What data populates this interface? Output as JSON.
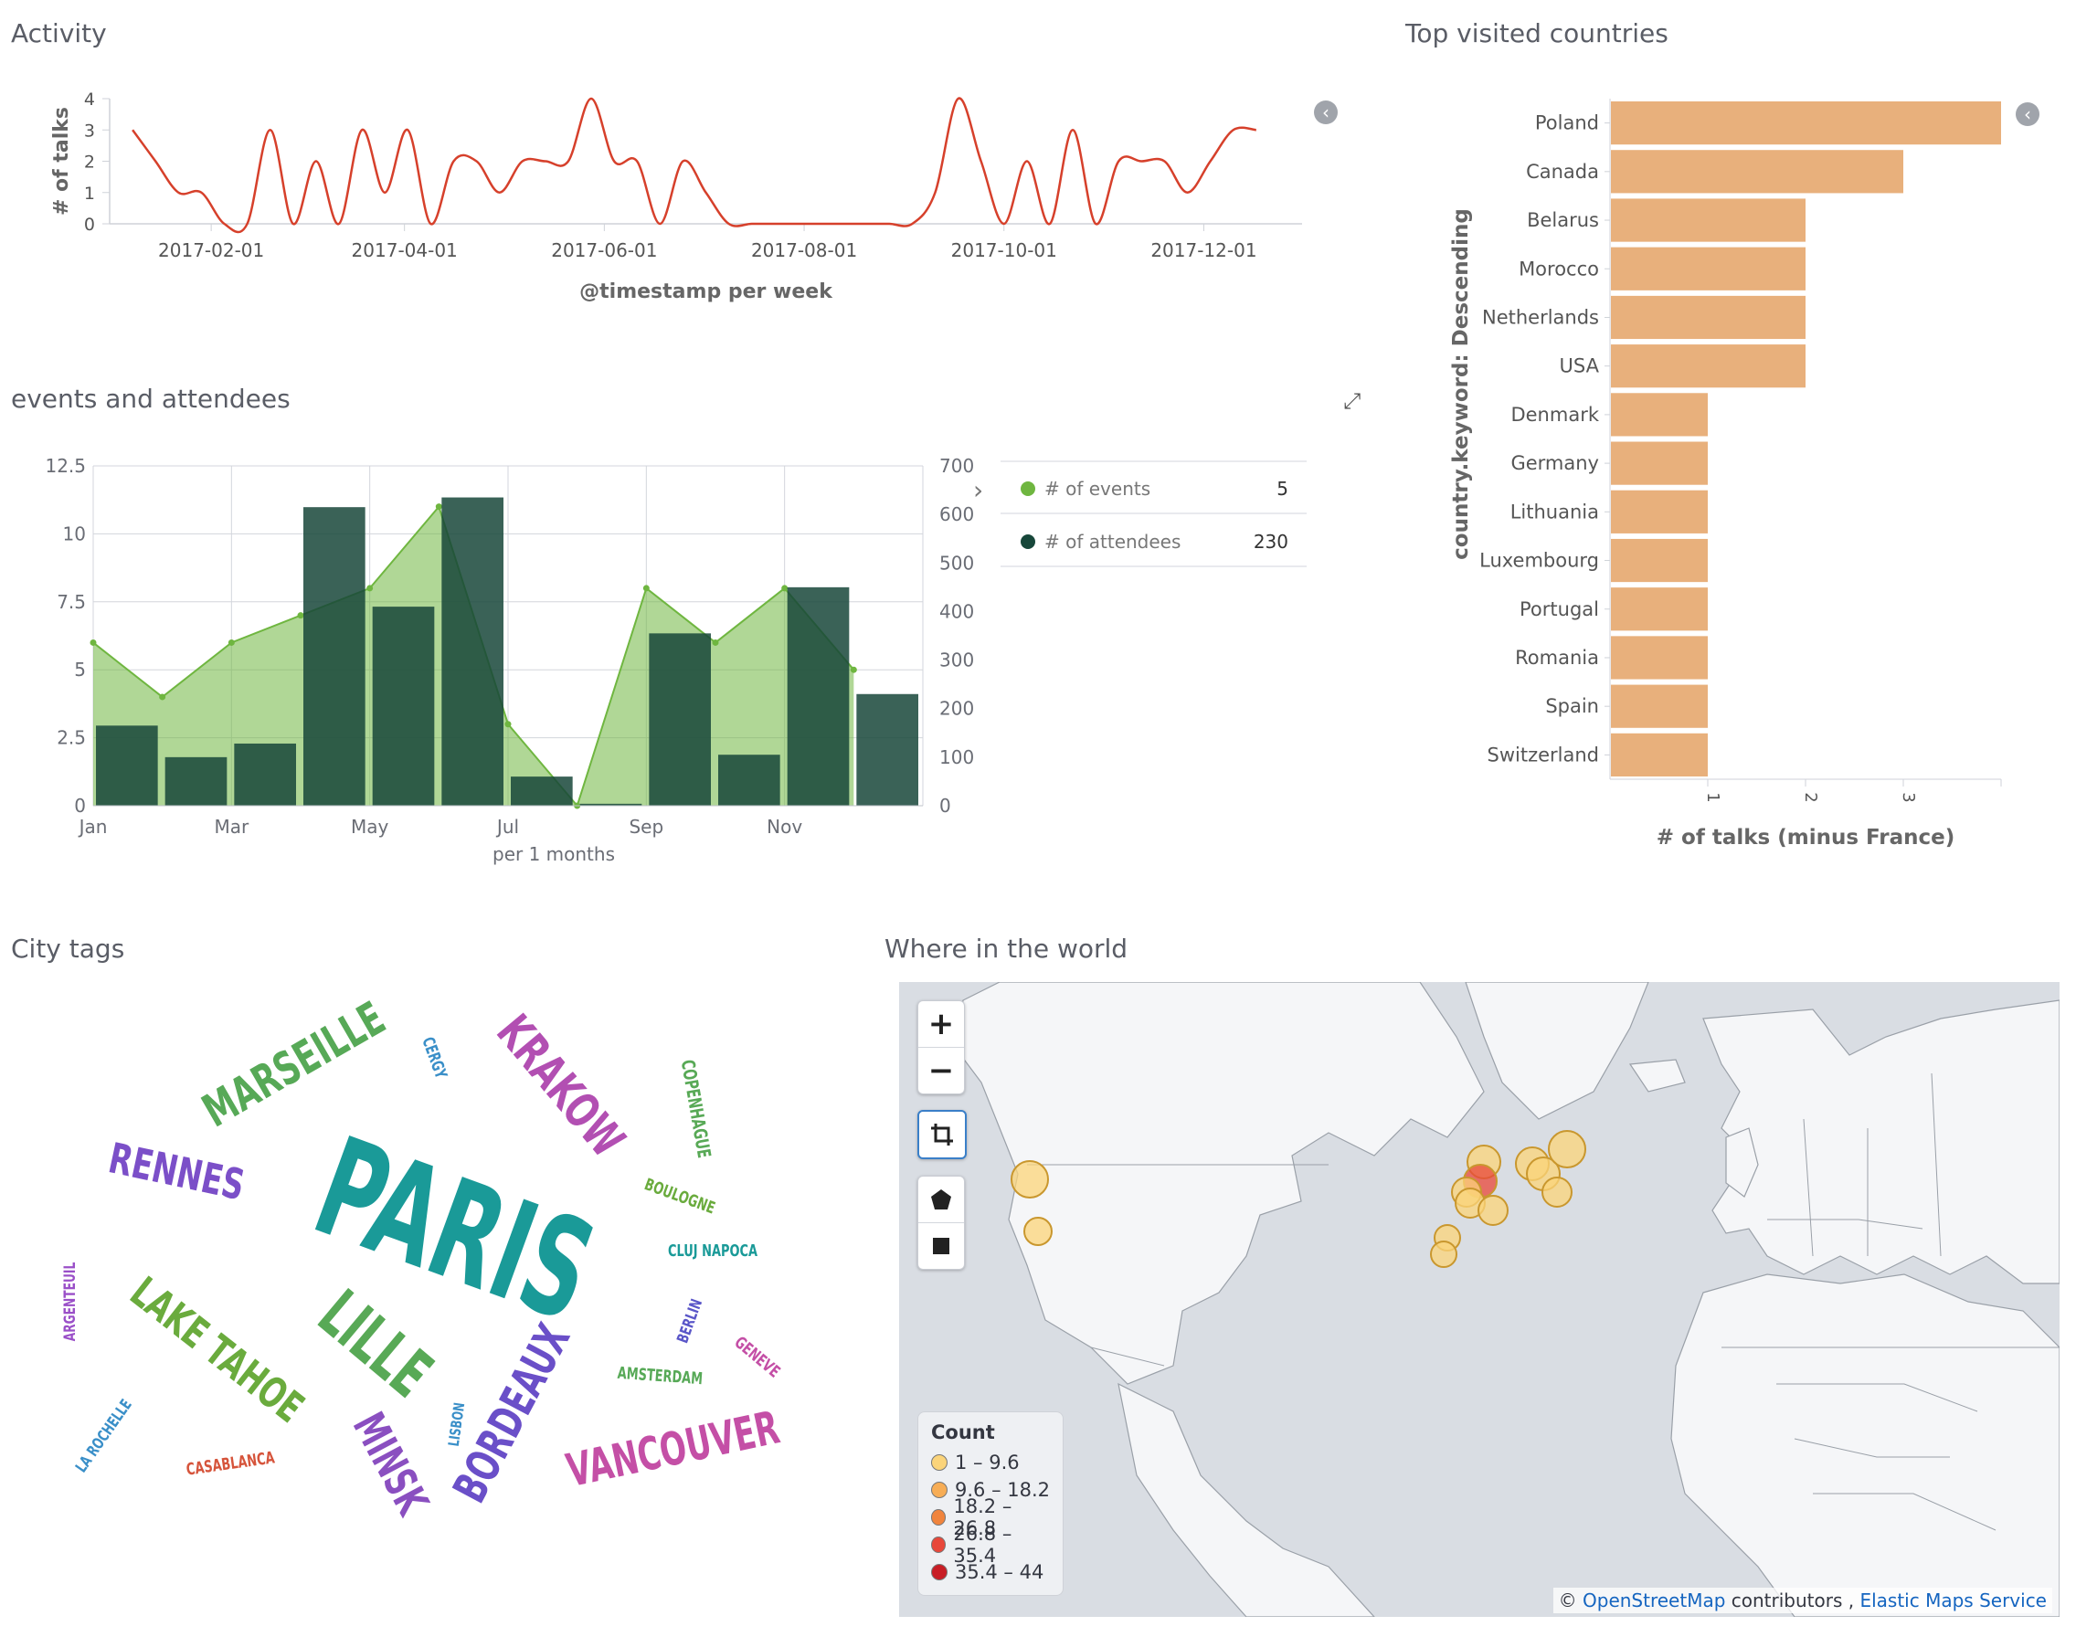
{
  "panels": {
    "activity": "Activity",
    "events": "events and attendees",
    "countries": "Top visited countries",
    "cities": "City tags",
    "world": "Where in the world"
  },
  "chart_data": [
    {
      "type": "line",
      "panel": "Activity",
      "xlabel": "@timestamp per week",
      "ylabel": "# of talks",
      "ylim": [
        0,
        4
      ],
      "yticks": [
        0,
        1,
        2,
        3,
        4
      ],
      "xticks": [
        "2017-02-01",
        "2017-04-01",
        "2017-06-01",
        "2017-08-01",
        "2017-10-01",
        "2017-12-01"
      ],
      "series": [
        {
          "color": "#d6402b",
          "x": [
            "2017-01-08",
            "2017-01-15",
            "2017-01-22",
            "2017-01-29",
            "2017-02-05",
            "2017-02-12",
            "2017-02-19",
            "2017-02-26",
            "2017-03-05",
            "2017-03-12",
            "2017-03-19",
            "2017-03-26",
            "2017-04-02",
            "2017-04-09",
            "2017-04-16",
            "2017-04-23",
            "2017-04-30",
            "2017-05-07",
            "2017-05-14",
            "2017-05-21",
            "2017-05-28",
            "2017-06-04",
            "2017-06-11",
            "2017-06-18",
            "2017-06-25",
            "2017-07-02",
            "2017-07-09",
            "2017-07-16",
            "2017-07-23",
            "2017-07-30",
            "2017-08-06",
            "2017-08-13",
            "2017-08-20",
            "2017-08-27",
            "2017-09-03",
            "2017-09-10",
            "2017-09-17",
            "2017-09-24",
            "2017-10-01",
            "2017-10-08",
            "2017-10-15",
            "2017-10-22",
            "2017-10-29",
            "2017-11-05",
            "2017-11-12",
            "2017-11-19",
            "2017-11-26",
            "2017-12-03",
            "2017-12-10",
            "2017-12-17"
          ],
          "y": [
            3,
            2,
            1,
            1,
            0,
            0,
            3,
            0,
            2,
            0,
            3,
            1,
            3,
            0,
            2,
            2,
            1,
            2,
            2,
            2,
            4,
            2,
            2,
            0,
            2,
            1,
            0,
            0,
            0,
            0,
            0,
            0,
            0,
            0,
            0,
            1,
            4,
            2,
            0,
            2,
            0,
            3,
            0,
            2,
            2,
            2,
            1,
            2,
            3,
            3
          ]
        }
      ]
    },
    {
      "type": "bar",
      "panel": "events and attendees",
      "xlabel": "per 1 months",
      "categories": [
        "Jan",
        "Feb",
        "Mar",
        "Apr",
        "May",
        "Jun",
        "Jul",
        "Aug",
        "Sep",
        "Oct",
        "Nov",
        "Dec"
      ],
      "xtick_labels": [
        "Jan",
        "Mar",
        "May",
        "Jul",
        "Sep",
        "Nov"
      ],
      "ylim_left": [
        0,
        12.5
      ],
      "yticks_left": [
        "0",
        "2.5",
        "5",
        "7.5",
        "10",
        "12.5"
      ],
      "ylim_right": [
        0,
        700
      ],
      "yticks_right": [
        "0",
        "100",
        "200",
        "300",
        "400",
        "500",
        "600",
        "700"
      ],
      "series": [
        {
          "name": "# of events",
          "kind": "area",
          "axis": "left",
          "color": "#6fb640",
          "values": [
            6,
            4,
            6,
            7,
            8,
            11,
            3,
            0,
            8,
            6,
            8,
            5
          ]
        },
        {
          "name": "# of attendees",
          "kind": "bar",
          "axis": "right",
          "color": "#17473a",
          "values": [
            165,
            100,
            128,
            615,
            410,
            635,
            60,
            4,
            355,
            105,
            450,
            230
          ]
        }
      ],
      "legend": [
        {
          "name": "# of events",
          "value": "5",
          "color": "#6fb640"
        },
        {
          "name": "# of attendees",
          "value": "230",
          "color": "#17473a"
        }
      ]
    },
    {
      "type": "bar",
      "orientation": "horizontal",
      "panel": "Top visited countries",
      "xlabel": "# of talks (minus France)",
      "ylabel": "country.keyword: Descending",
      "xlim": [
        0,
        4
      ],
      "xticks": [
        "1",
        "2",
        "3"
      ],
      "color": "#e8b07c",
      "categories": [
        "Poland",
        "Canada",
        "Belarus",
        "Morocco",
        "Netherlands",
        "USA",
        "Denmark",
        "Germany",
        "Lithuania",
        "Luxembourg",
        "Portugal",
        "Romania",
        "Spain",
        "Switzerland"
      ],
      "values": [
        4,
        3,
        2,
        2,
        2,
        2,
        1,
        1,
        1,
        1,
        1,
        1,
        1,
        1
      ]
    }
  ],
  "city_tags": [
    {
      "text": "PARIS",
      "color": "#1a9a98"
    },
    {
      "text": "MARSEILLE",
      "color": "#57a957"
    },
    {
      "text": "KRAKOW",
      "color": "#b24fb2"
    },
    {
      "text": "RENNES",
      "color": "#7b4fc8"
    },
    {
      "text": "LILLE",
      "color": "#58a956"
    },
    {
      "text": "LAKE TAHOE",
      "color": "#6aab3d"
    },
    {
      "text": "BORDEAUX",
      "color": "#6a4fc8"
    },
    {
      "text": "VANCOUVER",
      "color": "#c44fa6"
    },
    {
      "text": "MINSK",
      "color": "#8a4fc0"
    },
    {
      "text": "CERGY",
      "color": "#3a8fc8"
    },
    {
      "text": "COPENHAGUE",
      "color": "#58a956"
    },
    {
      "text": "BOULOGNE",
      "color": "#6aab3d"
    },
    {
      "text": "CLUJ NAPOCA",
      "color": "#1a9a98"
    },
    {
      "text": "BERLIN",
      "color": "#5a56c8"
    },
    {
      "text": "GENEVE",
      "color": "#c44fa6"
    },
    {
      "text": "AMSTERDAM",
      "color": "#57a957"
    },
    {
      "text": "LISBON",
      "color": "#3a8fc8"
    },
    {
      "text": "ARGENTEUIL",
      "color": "#9a4fc8"
    },
    {
      "text": "LA ROCHELLE",
      "color": "#3a8fc8"
    },
    {
      "text": "CASABLANCA",
      "color": "#d6543b"
    }
  ],
  "map": {
    "controls": {
      "zoom_in": "+",
      "zoom_out": "−"
    },
    "legend_title": "Count",
    "legend": [
      {
        "label": "1 – 9.6",
        "color": "#fbd47a"
      },
      {
        "label": "9.6 – 18.2",
        "color": "#f7ad55"
      },
      {
        "label": "18.2 – 26.8",
        "color": "#f0843d"
      },
      {
        "label": "26.8 – 35.4",
        "color": "#e8473a"
      },
      {
        "label": "35.4 – 44",
        "color": "#c81d25"
      }
    ],
    "attribution": {
      "osm": "OpenStreetMap",
      "contributors": "contributors ,",
      "ems": "Elastic Maps Service"
    }
  }
}
